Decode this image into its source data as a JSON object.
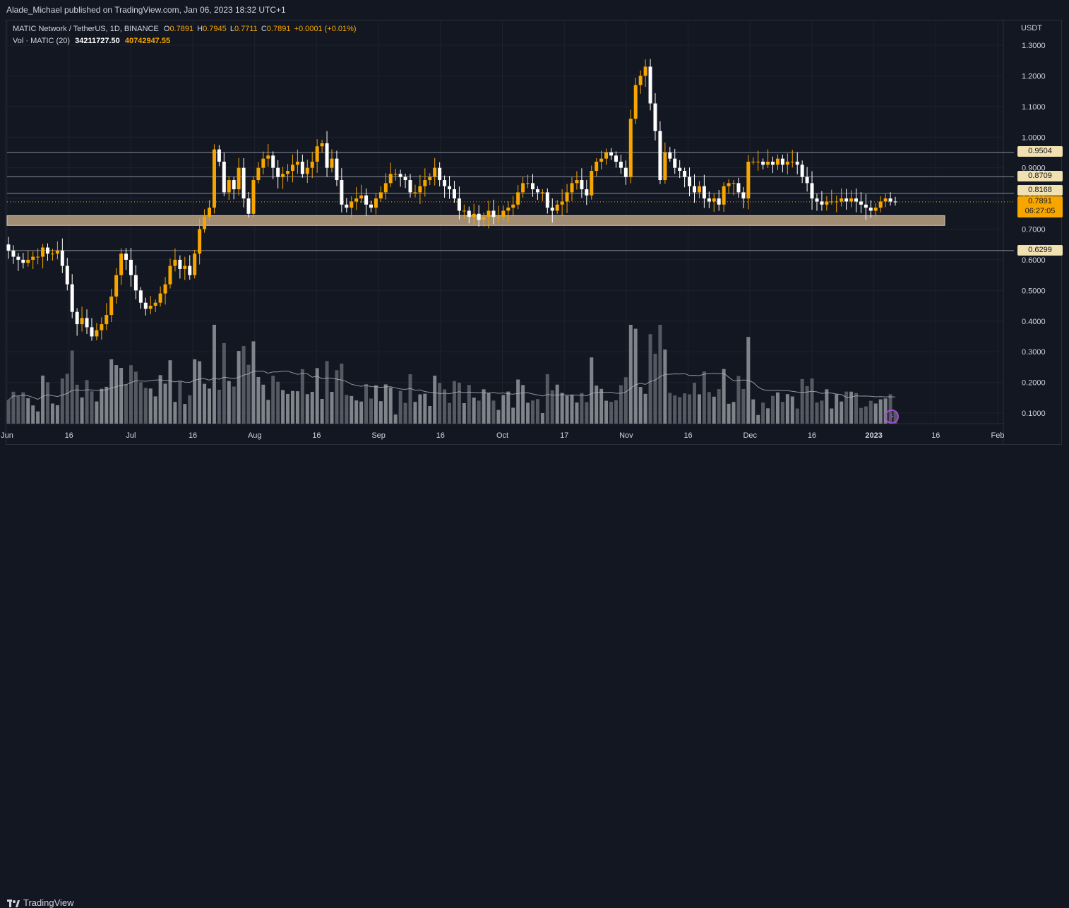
{
  "header": {
    "published": "Alade_Michael published on TradingView.com, Jan 06, 2023 18:32 UTC+1"
  },
  "legend": {
    "symbol": "MATIC Network / TetherUS, 1D, BINANCE",
    "open_label": "O",
    "open": "0.7891",
    "high_label": "H",
    "high": "0.7945",
    "low_label": "L",
    "low": "0.7711",
    "close_label": "C",
    "close": "0.7891",
    "change": "+0.0001 (+0.01%)",
    "vol_label": "Vol · MATIC (20)",
    "vol_value": "34211727.50",
    "vol_ma": "40742947.55"
  },
  "price_axis": {
    "currency": "USDT",
    "ticks": [
      "1.3000",
      "1.2000",
      "1.1000",
      "1.0000",
      "0.9000",
      "0.8000",
      "0.7000",
      "0.6000",
      "0.5000",
      "0.4000",
      "0.3000",
      "0.2000",
      "0.1000"
    ]
  },
  "time_axis": {
    "ticks": [
      "Jun",
      "16",
      "Jul",
      "16",
      "Aug",
      "16",
      "Sep",
      "16",
      "Oct",
      "17",
      "Nov",
      "16",
      "Dec",
      "16",
      "2023",
      "16",
      "Feb"
    ]
  },
  "levels": {
    "l1": "0.9504",
    "l2": "0.8709",
    "l3": "0.8168",
    "l4": "0.6299",
    "current": "0.7891",
    "countdown": "06:27:05"
  },
  "footer": {
    "brand": "TradingView"
  },
  "colors": {
    "background": "#131722",
    "up": "#f7a600",
    "down": "#ffffff",
    "zone": "#c8ae8c",
    "level_line": "#8a8e99",
    "current_label": "#f7a600"
  },
  "chart_data": {
    "type": "candlestick",
    "title": "MATIC Network / TetherUS, 1D, BINANCE",
    "ylabel": "USDT",
    "ylim": [
      0.07,
      1.36
    ],
    "support_zone": [
      0.712,
      0.744
    ],
    "horizontal_levels": [
      0.9504,
      0.8709,
      0.8168,
      0.6299
    ],
    "current_price": 0.7891,
    "closes": [
      0.63,
      0.61,
      0.6,
      0.59,
      0.6,
      0.61,
      0.61,
      0.64,
      0.62,
      0.62,
      0.63,
      0.58,
      0.52,
      0.43,
      0.39,
      0.41,
      0.38,
      0.35,
      0.37,
      0.39,
      0.42,
      0.48,
      0.55,
      0.62,
      0.6,
      0.55,
      0.5,
      0.46,
      0.44,
      0.45,
      0.46,
      0.49,
      0.52,
      0.58,
      0.6,
      0.57,
      0.58,
      0.55,
      0.62,
      0.7,
      0.74,
      0.77,
      0.96,
      0.92,
      0.82,
      0.86,
      0.83,
      0.9,
      0.8,
      0.75,
      0.86,
      0.9,
      0.93,
      0.94,
      0.9,
      0.87,
      0.88,
      0.89,
      0.91,
      0.92,
      0.88,
      0.9,
      0.92,
      0.97,
      0.98,
      0.9,
      0.93,
      0.86,
      0.78,
      0.77,
      0.79,
      0.8,
      0.81,
      0.78,
      0.77,
      0.8,
      0.82,
      0.85,
      0.88,
      0.88,
      0.87,
      0.86,
      0.82,
      0.82,
      0.84,
      0.86,
      0.87,
      0.9,
      0.86,
      0.84,
      0.83,
      0.8,
      0.76,
      0.76,
      0.74,
      0.75,
      0.73,
      0.74,
      0.76,
      0.74,
      0.74,
      0.76,
      0.77,
      0.78,
      0.82,
      0.85,
      0.85,
      0.83,
      0.82,
      0.82,
      0.77,
      0.76,
      0.78,
      0.79,
      0.82,
      0.85,
      0.86,
      0.83,
      0.81,
      0.89,
      0.92,
      0.93,
      0.95,
      0.94,
      0.92,
      0.9,
      0.87,
      1.06,
      1.17,
      1.2,
      1.23,
      1.11,
      1.02,
      0.86,
      0.95,
      0.93,
      0.9,
      0.89,
      0.87,
      0.84,
      0.82,
      0.84,
      0.8,
      0.79,
      0.8,
      0.78,
      0.84,
      0.85,
      0.85,
      0.82,
      0.8,
      0.92,
      0.92,
      0.92,
      0.91,
      0.92,
      0.91,
      0.93,
      0.91,
      0.92,
      0.92,
      0.91,
      0.87,
      0.85,
      0.8,
      0.79,
      0.78,
      0.79,
      0.79,
      0.79,
      0.8,
      0.79,
      0.8,
      0.79,
      0.78,
      0.77,
      0.76,
      0.77,
      0.79,
      0.8,
      0.79,
      0.7891
    ],
    "volume_ma_label": "Vol · MATIC (20)"
  }
}
